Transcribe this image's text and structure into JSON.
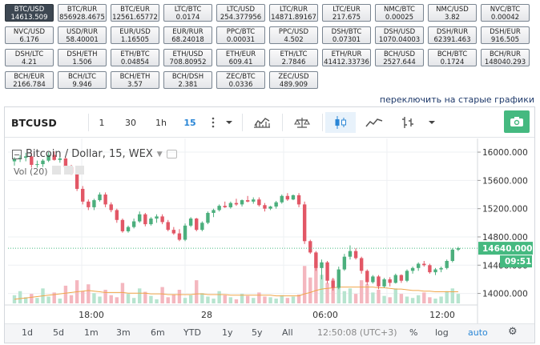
{
  "tickers": [
    {
      "pair": "BTC/USD",
      "value": "14613.509",
      "active": true
    },
    {
      "pair": "BTC/RUR",
      "value": "856928.4675"
    },
    {
      "pair": "BTC/EUR",
      "value": "12561.65772"
    },
    {
      "pair": "LTC/BTC",
      "value": "0.0174"
    },
    {
      "pair": "LTC/USD",
      "value": "254.377956"
    },
    {
      "pair": "LTC/RUR",
      "value": "14871.89167"
    },
    {
      "pair": "LTC/EUR",
      "value": "217.675"
    },
    {
      "pair": "NMC/BTC",
      "value": "0.00025"
    },
    {
      "pair": "NMC/USD",
      "value": "3.82"
    },
    {
      "pair": "NVC/BTC",
      "value": "0.00042"
    },
    {
      "pair": "NVC/USD",
      "value": "6.176"
    },
    {
      "pair": "USD/RUR",
      "value": "58.40001"
    },
    {
      "pair": "EUR/USD",
      "value": "1.16505"
    },
    {
      "pair": "EUR/RUR",
      "value": "68.24018"
    },
    {
      "pair": "PPC/BTC",
      "value": "0.00031"
    },
    {
      "pair": "PPC/USD",
      "value": "4.502"
    },
    {
      "pair": "DSH/BTC",
      "value": "0.07301"
    },
    {
      "pair": "DSH/USD",
      "value": "1070.04003"
    },
    {
      "pair": "DSH/RUR",
      "value": "62391.463"
    },
    {
      "pair": "DSH/EUR",
      "value": "916.505"
    },
    {
      "pair": "DSH/LTC",
      "value": "4.21"
    },
    {
      "pair": "DSH/ETH",
      "value": "1.506"
    },
    {
      "pair": "ETH/BTC",
      "value": "0.04854"
    },
    {
      "pair": "ETH/USD",
      "value": "708.80952"
    },
    {
      "pair": "ETH/EUR",
      "value": "609.41"
    },
    {
      "pair": "ETH/LTC",
      "value": "2.7846"
    },
    {
      "pair": "ETH/RUR",
      "value": "41412.33736"
    },
    {
      "pair": "BCH/USD",
      "value": "2527.644"
    },
    {
      "pair": "BCH/BTC",
      "value": "0.1724"
    },
    {
      "pair": "BCH/RUR",
      "value": "148040.293"
    },
    {
      "pair": "BCH/EUR",
      "value": "2166.784"
    },
    {
      "pair": "BCH/LTC",
      "value": "9.946"
    },
    {
      "pair": "BCH/ETH",
      "value": "3.57"
    },
    {
      "pair": "BCH/DSH",
      "value": "2.381"
    },
    {
      "pair": "ZEC/BTC",
      "value": "0.0336"
    },
    {
      "pair": "ZEC/USD",
      "value": "489.909"
    }
  ],
  "switch_link": "переключить на старые графики",
  "toolbar": {
    "symbol": "BTCUSD",
    "intervals": [
      "1",
      "30",
      "1h",
      "15"
    ],
    "active_interval": "15",
    "icons": [
      "more-vertical-icon",
      "chevron-down-icon",
      "indicators-icon",
      "compare-scales-icon",
      "candles-icon",
      "area-line-icon",
      "bar-ohlc-icon",
      "chevron-down-icon",
      "camera-icon"
    ]
  },
  "legend": {
    "title": "Bitcoin / Dollar, 15, WEX",
    "volume": "Vol (20)"
  },
  "price_axis": {
    "ticks": [
      "16000.000",
      "15600.000",
      "15200.000",
      "14800.000",
      "14400.000",
      "14000.000"
    ],
    "last_price": "14640.000",
    "countdown": "09:51"
  },
  "time_axis": {
    "ticks": [
      "18:00",
      "28",
      "06:00",
      "12:00"
    ]
  },
  "bottom_bar": {
    "ranges": [
      "1d",
      "5d",
      "1m",
      "3m",
      "6m",
      "YTD",
      "1y",
      "5y",
      "All"
    ],
    "clock": "12:50:08 (UTC+3)",
    "percent": "%",
    "log": "log",
    "auto": "auto"
  },
  "colors": {
    "up": "#4caf7d",
    "down": "#e25766",
    "up_vol": "#b7e4cf",
    "down_vol": "#f4b7bf",
    "price_tag": "#45b980",
    "accent": "#2a86d6"
  },
  "chart_data": {
    "type": "candlestick",
    "title": "Bitcoin / Dollar, 15, WEX",
    "y_axis": {
      "ticks": [
        16000,
        15600,
        15200,
        14800,
        14400,
        14000
      ]
    },
    "last_price": 14640,
    "candles": [
      [
        15870,
        15930,
        15810,
        15900
      ],
      [
        15900,
        15960,
        15860,
        15920
      ],
      [
        15920,
        15990,
        15870,
        15940
      ],
      [
        15940,
        15990,
        15780,
        15820
      ],
      [
        15820,
        15880,
        15780,
        15830
      ],
      [
        15830,
        15900,
        15790,
        15880
      ],
      [
        15880,
        16000,
        15860,
        15960
      ],
      [
        15960,
        16010,
        15880,
        15890
      ],
      [
        15890,
        15940,
        15850,
        15910
      ],
      [
        15910,
        15930,
        15760,
        15790
      ],
      [
        15790,
        15820,
        15680,
        15700
      ],
      [
        15700,
        15720,
        15450,
        15480
      ],
      [
        15480,
        15520,
        15260,
        15300
      ],
      [
        15300,
        15330,
        15180,
        15220
      ],
      [
        15220,
        15340,
        15180,
        15320
      ],
      [
        15320,
        15430,
        15300,
        15400
      ],
      [
        15400,
        15430,
        15220,
        15260
      ],
      [
        15260,
        15290,
        15150,
        15180
      ],
      [
        15180,
        15200,
        15000,
        15040
      ],
      [
        15040,
        15060,
        14860,
        14880
      ],
      [
        14880,
        14960,
        14860,
        14940
      ],
      [
        14940,
        15060,
        14920,
        15020
      ],
      [
        15020,
        15160,
        15000,
        15120
      ],
      [
        15120,
        15140,
        14950,
        14980
      ],
      [
        14980,
        15080,
        14960,
        15060
      ],
      [
        15060,
        15120,
        15000,
        15090
      ],
      [
        15090,
        15120,
        14980,
        15010
      ],
      [
        15010,
        15040,
        14880,
        14900
      ],
      [
        14900,
        14940,
        14830,
        14850
      ],
      [
        14850,
        14910,
        14740,
        14760
      ],
      [
        14760,
        14990,
        14740,
        14960
      ],
      [
        14960,
        15080,
        14940,
        15060
      ],
      [
        15060,
        15070,
        14880,
        14900
      ],
      [
        14900,
        15020,
        14880,
        15000
      ],
      [
        15000,
        15160,
        14980,
        15140
      ],
      [
        15140,
        15200,
        15080,
        15180
      ],
      [
        15180,
        15260,
        15160,
        15240
      ],
      [
        15240,
        15300,
        15210,
        15220
      ],
      [
        15220,
        15300,
        15200,
        15280
      ],
      [
        15280,
        15340,
        15240,
        15260
      ],
      [
        15260,
        15330,
        15230,
        15320
      ],
      [
        15320,
        15380,
        15290,
        15300
      ],
      [
        15300,
        15360,
        15270,
        15330
      ],
      [
        15330,
        15360,
        15230,
        15250
      ],
      [
        15250,
        15280,
        15160,
        15200
      ],
      [
        15200,
        15240,
        15180,
        15230
      ],
      [
        15230,
        15310,
        15200,
        15290
      ],
      [
        15290,
        15400,
        15270,
        15380
      ],
      [
        15380,
        15420,
        15310,
        15330
      ],
      [
        15330,
        15400,
        15320,
        15390
      ],
      [
        15390,
        15420,
        15220,
        15260
      ],
      [
        15260,
        15300,
        14700,
        14740
      ],
      [
        14740,
        14760,
        14560,
        14580
      ],
      [
        14580,
        14600,
        14320,
        14360
      ],
      [
        14360,
        14480,
        14200,
        14440
      ],
      [
        14440,
        14460,
        14140,
        14180
      ],
      [
        14180,
        14220,
        14040,
        14080
      ],
      [
        14080,
        14380,
        14060,
        14340
      ],
      [
        14340,
        14560,
        14320,
        14520
      ],
      [
        14520,
        14680,
        14480,
        14600
      ],
      [
        14600,
        14640,
        14480,
        14500
      ],
      [
        14500,
        14520,
        14280,
        14320
      ],
      [
        14320,
        14340,
        14120,
        14160
      ],
      [
        14160,
        14260,
        14140,
        14240
      ],
      [
        14240,
        14260,
        14060,
        14100
      ],
      [
        14100,
        14220,
        14080,
        14200
      ],
      [
        14200,
        14230,
        14100,
        14150
      ],
      [
        14150,
        14280,
        14140,
        14260
      ],
      [
        14260,
        14270,
        14150,
        14180
      ],
      [
        14180,
        14340,
        14160,
        14320
      ],
      [
        14320,
        14380,
        14280,
        14360
      ],
      [
        14360,
        14440,
        14320,
        14420
      ],
      [
        14420,
        14460,
        14380,
        14400
      ],
      [
        14400,
        14420,
        14280,
        14300
      ],
      [
        14300,
        14360,
        14260,
        14340
      ],
      [
        14340,
        14380,
        14300,
        14360
      ],
      [
        14360,
        14480,
        14340,
        14460
      ],
      [
        14460,
        14640,
        14440,
        14620
      ],
      [
        14620,
        14660,
        14600,
        14640
      ]
    ],
    "volumes": [
      12,
      18,
      9,
      14,
      8,
      22,
      10,
      16,
      7,
      26,
      12,
      34,
      18,
      28,
      15,
      10,
      20,
      12,
      9,
      30,
      14,
      8,
      22,
      17,
      11,
      6,
      24,
      9,
      13,
      20,
      8,
      12,
      34,
      15,
      10,
      7,
      18,
      12,
      9,
      6,
      14,
      11,
      8,
      16,
      10,
      9,
      7,
      12,
      8,
      10,
      13,
      55,
      38,
      60,
      42,
      30,
      36,
      24,
      18,
      22,
      14,
      34,
      28,
      16,
      20,
      11,
      9,
      22,
      14,
      10,
      8,
      12,
      16,
      9,
      7,
      10,
      18,
      22,
      14
    ],
    "ma": [
      6,
      7,
      8,
      9,
      10,
      11,
      12,
      13,
      14,
      15,
      16,
      17,
      18,
      19,
      18,
      17,
      16,
      16,
      16,
      16,
      15,
      15,
      15,
      15,
      14,
      14,
      14,
      13,
      13,
      13,
      13,
      13,
      14,
      14,
      13,
      13,
      13,
      13,
      12,
      12,
      12,
      12,
      12,
      12,
      12,
      12,
      11,
      11,
      11,
      11,
      11,
      14,
      16,
      19,
      21,
      22,
      23,
      24,
      24,
      24,
      24,
      24,
      24,
      24,
      23,
      23,
      22,
      21,
      21,
      20,
      19,
      19,
      18,
      18,
      17,
      17,
      17,
      17,
      17
    ]
  }
}
